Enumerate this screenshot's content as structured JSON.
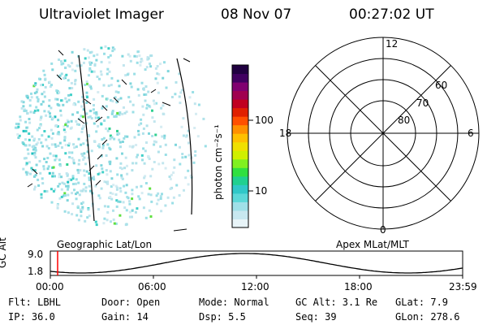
{
  "header": {
    "instrument": "Ultraviolet Imager",
    "date": "08 Nov 07",
    "time": "00:27:02 UT"
  },
  "geographic_panel": {
    "label": "Geographic Lat/Lon"
  },
  "colorbar": {
    "unit_label": "photon cm⁻²s⁻¹",
    "ticks": [
      {
        "label": "100",
        "value": 100
      },
      {
        "label": "10",
        "value": 10
      }
    ],
    "colors": [
      "#e8f4f8",
      "#c8e8f0",
      "#9fe0e8",
      "#5cd8d8",
      "#30c8c8",
      "#20d090",
      "#30e040",
      "#80f020",
      "#d0f000",
      "#f0e000",
      "#ffc000",
      "#ff9000",
      "#ff5000",
      "#e02000",
      "#c00020",
      "#a00050",
      "#800070",
      "#400060",
      "#200040"
    ]
  },
  "polar_panel": {
    "label": "Apex MLat/MLT",
    "mlt_labels": {
      "top": "12",
      "bottom": "0",
      "left": "18",
      "right": "6"
    },
    "lat_labels": [
      "60",
      "70",
      "80"
    ]
  },
  "altitude_plot": {
    "ylabel": "GC Alt",
    "yticks": [
      "9.0",
      "1.8"
    ],
    "xticks": [
      "00:00",
      "06:00",
      "12:00",
      "18:00",
      "23:59"
    ],
    "marker_color": "#ff0000"
  },
  "info": {
    "flt": "Flt: LBHL",
    "door": "Door: Open",
    "mode": "Mode: Normal",
    "gc_alt": "GC Alt: 3.1 Re",
    "glat": "GLat:   7.9",
    "ip": "IP: 36.0",
    "gain": "Gain: 14",
    "dsp": "Dsp:     5.5",
    "seq": "Seq: 39",
    "glon": "GLon: 278.6"
  }
}
